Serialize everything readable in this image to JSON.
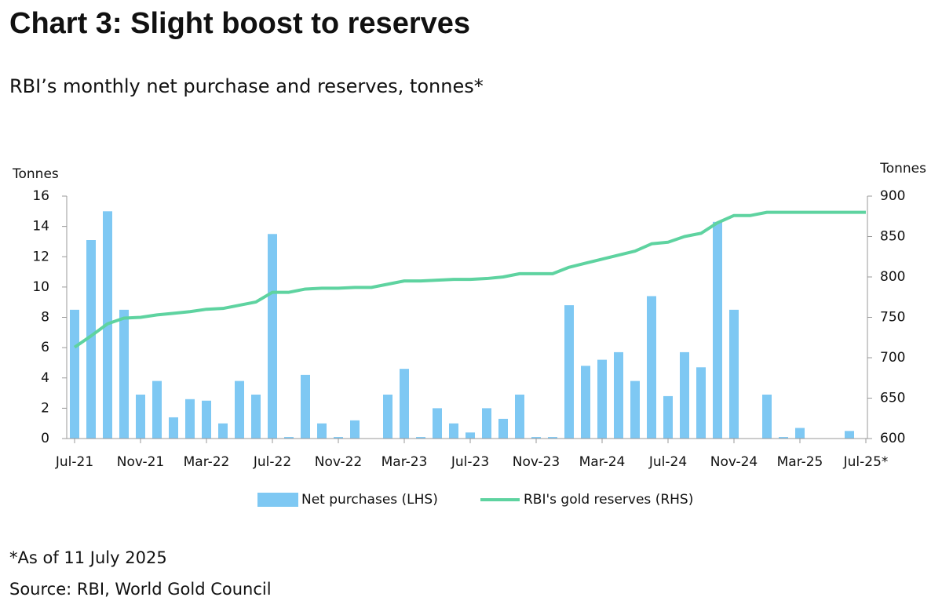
{
  "chart_data": {
    "type": "bar-line",
    "title": "Chart 3: Slight boost to reserves",
    "subtitle": "RBI’s monthly net purchase and reserves, tonnes*",
    "y_label": "Tonnes",
    "y2_label": "Tonnes",
    "categories": [
      "Jul-21",
      null,
      null,
      null,
      "Nov-21",
      null,
      null,
      null,
      "Mar-22",
      null,
      null,
      null,
      "Jul-22",
      null,
      null,
      null,
      "Nov-22",
      null,
      null,
      null,
      "Mar-23",
      null,
      null,
      null,
      "Jul-23",
      null,
      null,
      null,
      "Nov-23",
      null,
      null,
      null,
      "Mar-24",
      null,
      null,
      null,
      "Jul-24",
      null,
      null,
      null,
      "Nov-24",
      null,
      null,
      null,
      "Mar-25",
      null,
      null,
      null,
      "Jul-25*"
    ],
    "series": [
      {
        "name": "Net purchases (LHS)",
        "type": "bar",
        "color": "#7ec8f3",
        "values": [
          8.5,
          13.1,
          15,
          8.5,
          2.9,
          3.8,
          1.4,
          2.6,
          2.5,
          1.0,
          3.8,
          2.9,
          13.5,
          0.1,
          4.2,
          1.0,
          0.1,
          1.2,
          0,
          2.9,
          4.6,
          0.1,
          2.0,
          1.0,
          0.4,
          2.0,
          1.3,
          2.9,
          0.1,
          0.1,
          8.8,
          4.8,
          5.2,
          5.7,
          3.8,
          9.4,
          2.8,
          5.7,
          4.7,
          14.3,
          8.5,
          0,
          2.9,
          0.1,
          0.7,
          0,
          0,
          0.5,
          0
        ]
      },
      {
        "name": "RBI's gold reserves (RHS)",
        "type": "line",
        "axis": "y2",
        "color": "#5ed3a0",
        "values": [
          713,
          727,
          742,
          749,
          750,
          753,
          755,
          757,
          760,
          761,
          765,
          769,
          781,
          781,
          785,
          786,
          786,
          787,
          787,
          791,
          795,
          795,
          796,
          797,
          797,
          798,
          800,
          804,
          804,
          804,
          812,
          817,
          822,
          827,
          832,
          841,
          843,
          850,
          854,
          867,
          876,
          876,
          880,
          880,
          880,
          880,
          880,
          880,
          880
        ]
      }
    ],
    "ylim": [
      0,
      16
    ],
    "yticks": [
      0,
      2,
      4,
      6,
      8,
      10,
      12,
      14,
      16
    ],
    "y2lim": [
      600,
      900
    ],
    "y2ticks": [
      600,
      650,
      700,
      750,
      800,
      850,
      900
    ],
    "legend": "bottom",
    "notes": [
      "*As of 11 July 2025",
      "Source: RBI, World Gold Council"
    ]
  }
}
